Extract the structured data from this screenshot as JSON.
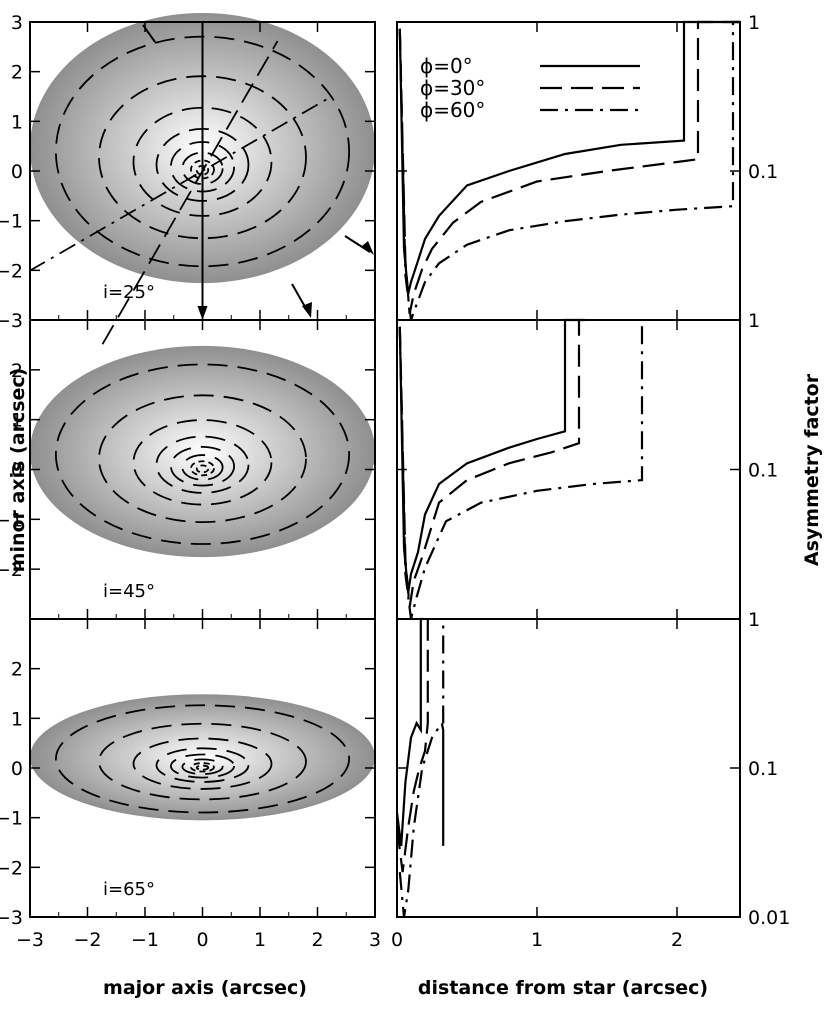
{
  "chart_data": [
    {
      "type": "line",
      "xlabel": "major axis (arcsec)",
      "ylabel": "minor axis (arcsec)",
      "xlim": [
        -3,
        3
      ],
      "ylim": [
        -3,
        3
      ],
      "xticks": [
        "−3",
        "−2",
        "−1",
        "0",
        "1",
        "2",
        "3"
      ],
      "yticks": [
        "−2",
        "−1",
        "0",
        "1",
        "2",
        "3"
      ],
      "panels": [
        {
          "label": "i=25°",
          "inclination_deg": 25,
          "ellipse_semi_minor": 2.72
        },
        {
          "label": "i=45°",
          "inclination_deg": 45,
          "ellipse_semi_minor": 2.12
        },
        {
          "label": "i=65°",
          "inclination_deg": 65,
          "ellipse_semi_minor": 1.27
        }
      ],
      "disk_radius": 3.0,
      "contour_levels": [
        0.1,
        0.2,
        0.35,
        0.55,
        0.8,
        1.2,
        1.8,
        2.55
      ]
    },
    {
      "type": "line",
      "xlabel": "distance from star (arcsec)",
      "ylabel": "Asymmetry factor",
      "xlim": [
        0,
        2.45
      ],
      "ylim": [
        0.01,
        1
      ],
      "log_y": true,
      "xticks": [
        "0",
        "1",
        "2"
      ],
      "yticks": [
        "1",
        "0.1",
        "0.01"
      ],
      "legend": {
        "position": "top-left",
        "entries": [
          "ϕ=0°",
          "ϕ=30°",
          "ϕ=60°"
        ]
      },
      "panels": [
        {
          "inclination_deg": 25,
          "series": [
            {
              "name": "ϕ=0°",
              "style": "solid",
              "x": [
                0.02,
                0.05,
                0.08,
                0.1,
                0.15,
                0.2,
                0.3,
                0.5,
                0.8,
                1.2,
                1.6,
                2.05,
                2.05,
                2.45
              ],
              "y": [
                0.9,
                0.03,
                0.015,
                0.018,
                0.025,
                0.035,
                0.05,
                0.08,
                0.1,
                0.13,
                0.15,
                0.16,
                1.0,
                1.0
              ]
            },
            {
              "name": "ϕ=30°",
              "style": "dashed",
              "x": [
                0.02,
                0.06,
                0.09,
                0.12,
                0.18,
                0.25,
                0.4,
                0.6,
                1.0,
                1.5,
                2.0,
                2.15,
                2.15,
                2.45
              ],
              "y": [
                0.9,
                0.025,
                0.011,
                0.015,
                0.022,
                0.03,
                0.045,
                0.062,
                0.085,
                0.1,
                0.115,
                0.12,
                1.0,
                1.0
              ]
            },
            {
              "name": "ϕ=60°",
              "style": "dashdot",
              "x": [
                0.02,
                0.06,
                0.1,
                0.13,
                0.2,
                0.3,
                0.5,
                0.8,
                1.2,
                1.6,
                2.0,
                2.4,
                2.4,
                2.45
              ],
              "y": [
                0.9,
                0.02,
                0.01,
                0.012,
                0.018,
                0.024,
                0.032,
                0.04,
                0.046,
                0.051,
                0.055,
                0.058,
                1.0,
                1.0
              ]
            }
          ]
        },
        {
          "inclination_deg": 45,
          "series": [
            {
              "name": "ϕ=0°",
              "style": "solid",
              "x": [
                0.02,
                0.05,
                0.08,
                0.1,
                0.15,
                0.2,
                0.3,
                0.5,
                0.8,
                1.0,
                1.2,
                1.2,
                1.3
              ],
              "y": [
                0.9,
                0.03,
                0.015,
                0.02,
                0.028,
                0.05,
                0.08,
                0.11,
                0.14,
                0.16,
                0.18,
                1.0,
                1.0
              ]
            },
            {
              "name": "ϕ=30°",
              "style": "dashed",
              "x": [
                0.02,
                0.06,
                0.09,
                0.12,
                0.18,
                0.3,
                0.5,
                0.8,
                1.1,
                1.3,
                1.3,
                1.35
              ],
              "y": [
                0.9,
                0.025,
                0.012,
                0.018,
                0.026,
                0.06,
                0.085,
                0.11,
                0.13,
                0.15,
                1.0,
                1.0
              ]
            },
            {
              "name": "ϕ=60°",
              "style": "dashdot",
              "x": [
                0.02,
                0.06,
                0.1,
                0.14,
                0.2,
                0.35,
                0.6,
                1.0,
                1.4,
                1.75,
                1.75,
                1.75
              ],
              "y": [
                0.9,
                0.02,
                0.01,
                0.014,
                0.022,
                0.045,
                0.06,
                0.072,
                0.08,
                0.085,
                1.0,
                1.0
              ]
            }
          ]
        },
        {
          "inclination_deg": 65,
          "series": [
            {
              "name": "ϕ=0°",
              "style": "solid",
              "x": [
                0.0,
                0.03,
                0.06,
                0.1,
                0.14,
                0.17,
                0.17,
                0.19
              ],
              "y": [
                0.05,
                0.03,
                0.08,
                0.16,
                0.2,
                0.18,
                1.0,
                1.0
              ]
            },
            {
              "name": "ϕ=30°",
              "style": "dashed",
              "x": [
                0.0,
                0.04,
                0.08,
                0.12,
                0.16,
                0.2,
                0.22,
                0.22
              ],
              "y": [
                0.04,
                0.02,
                0.04,
                0.07,
                0.1,
                0.13,
                0.2,
                1.0
              ]
            },
            {
              "name": "ϕ=60°",
              "style": "dashdot",
              "x": [
                0.02,
                0.05,
                0.08,
                0.12,
                0.18,
                0.25,
                0.32,
                0.33,
                0.33,
                0.33
              ],
              "y": [
                0.02,
                0.01,
                0.015,
                0.04,
                0.1,
                0.16,
                0.2,
                0.18,
                0.03,
                1.0
              ]
            }
          ]
        }
      ]
    }
  ]
}
